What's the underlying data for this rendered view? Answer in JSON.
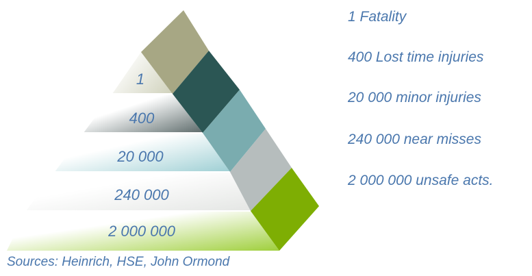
{
  "pyramid": {
    "tiers": [
      {
        "number": "1",
        "description": "1 Fatality",
        "color": "#a7a784"
      },
      {
        "number": "400",
        "description": "400 Lost time injuries",
        "color": "#2b5654"
      },
      {
        "number": "20 000",
        "description": "20 000 minor injuries",
        "color": "#7aacaf"
      },
      {
        "number": "240 000",
        "description": "240 000 near misses",
        "color": "#b6bdbd"
      },
      {
        "number": "2 000 000",
        "description": "2 000 000 unsafe acts.",
        "color": "#7eae03"
      }
    ],
    "front_tints": [
      "#c9cbb2",
      "#5c6a6a",
      "#9ecfd4",
      "#e4e6e4",
      "#9fcf3c"
    ]
  },
  "source_note": "Sources: Heinrich, HSE, John Ormond"
}
